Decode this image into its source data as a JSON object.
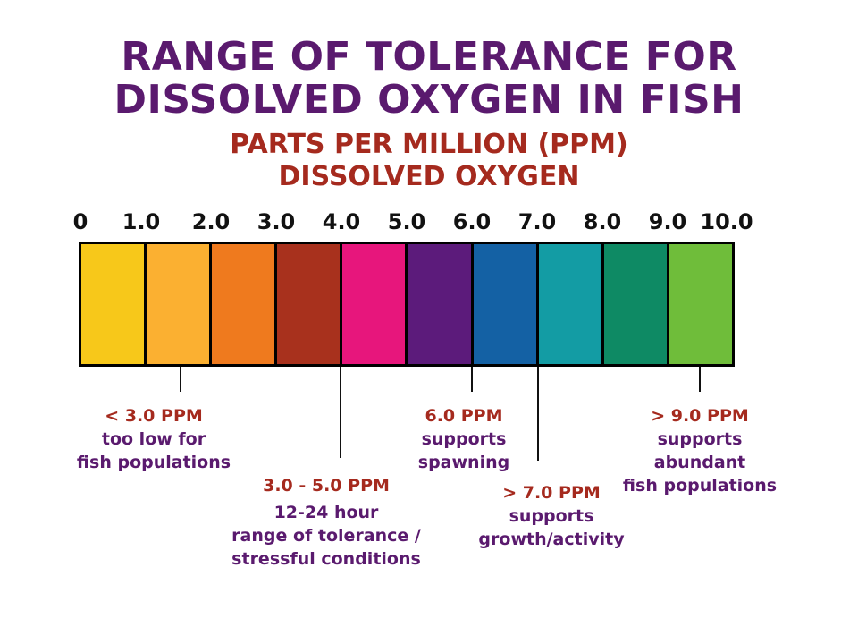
{
  "title_lines": [
    "RANGE OF TOLERANCE FOR",
    "DISSOLVED OXYGEN IN FISH"
  ],
  "subtitle_lines": [
    "PARTS PER MILLION (PPM)",
    "DISSOLVED OXYGEN"
  ],
  "scale": {
    "tick_labels": [
      "0",
      "1.0",
      "2.0",
      "3.0",
      "4.0",
      "5.0",
      "6.0",
      "7.0",
      "8.0",
      "9.0",
      "10.0"
    ],
    "segment_colors": [
      "#f7c81a",
      "#fbb031",
      "#ef7a1e",
      "#a8311d",
      "#e7167c",
      "#5c1b7b",
      "#1461a4",
      "#139ca4",
      "#0e8a64",
      "#6fbd3a"
    ]
  },
  "annotations": [
    {
      "ppm": "< 3.0 PPM",
      "lines": [
        "too low for",
        "fish populations"
      ]
    },
    {
      "ppm": "3.0 - 5.0 PPM",
      "lines": [
        "12-24 hour",
        "range of tolerance /",
        "stressful conditions"
      ]
    },
    {
      "ppm": "6.0 PPM",
      "lines": [
        "supports",
        "spawning"
      ]
    },
    {
      "ppm": "> 7.0 PPM",
      "lines": [
        "supports",
        "growth/activity"
      ]
    },
    {
      "ppm": "> 9.0 PPM",
      "lines": [
        "supports",
        "abundant",
        "fish populations"
      ]
    }
  ]
}
